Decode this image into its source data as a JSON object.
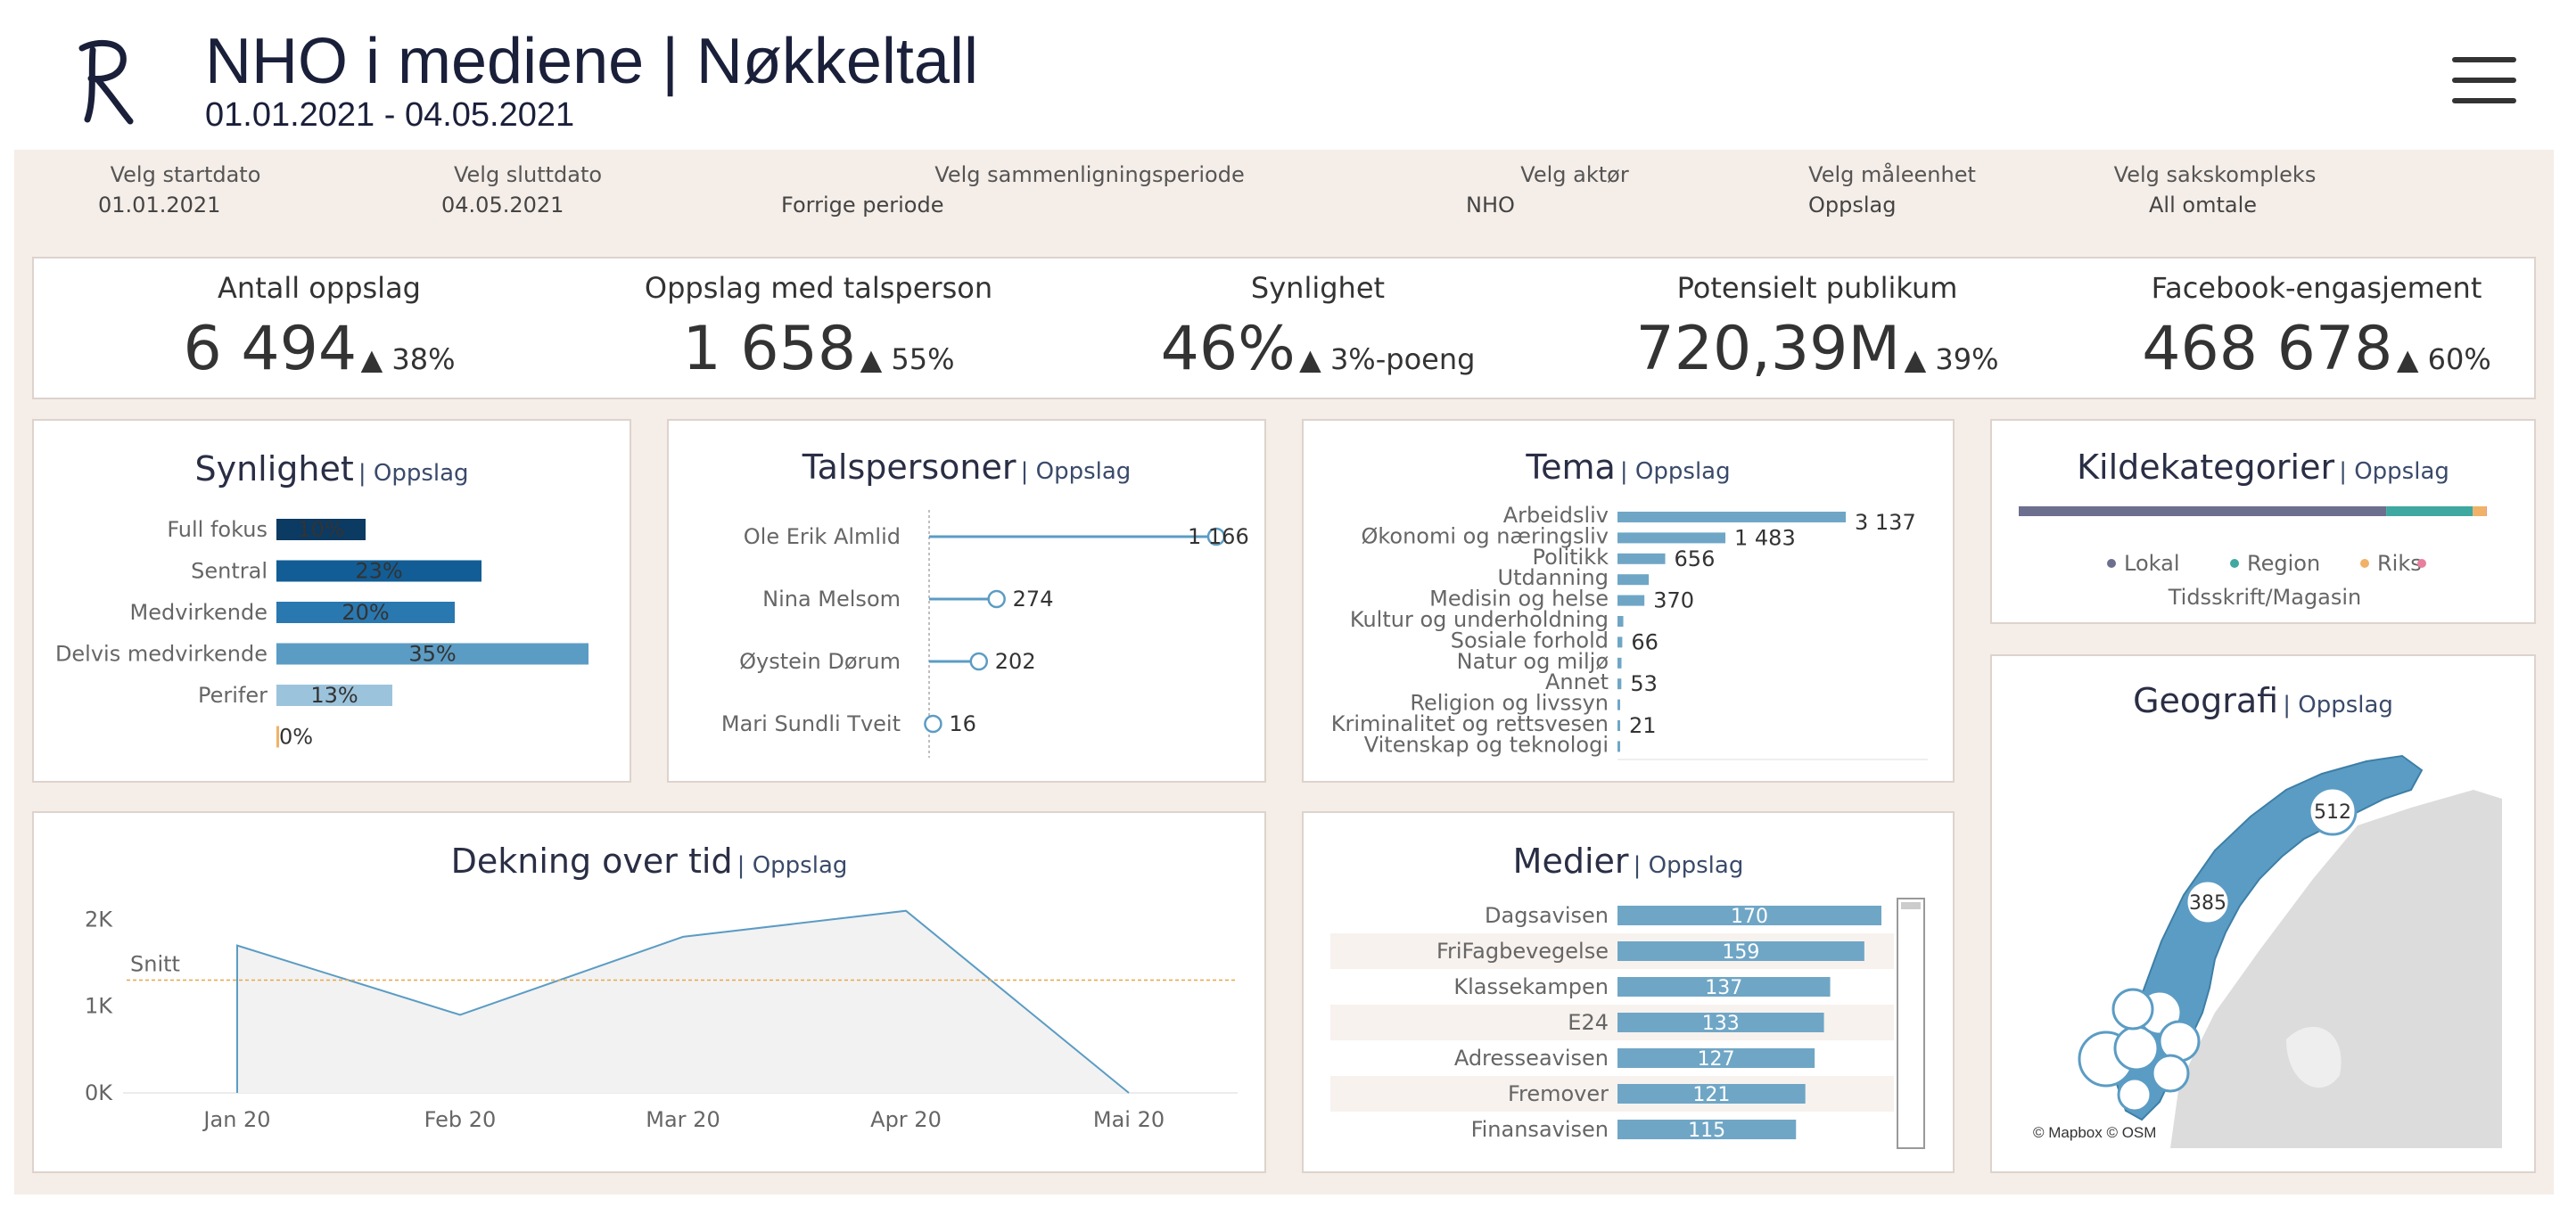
{
  "header": {
    "title": "NHO i mediene | Nøkkeltall",
    "subtitle": "01.01.2021 - 04.05.2021",
    "logo_text": "R"
  },
  "filters": [
    {
      "label": "Velg startdato",
      "value": "01.01.2021"
    },
    {
      "label": "Velg sluttdato",
      "value": "04.05.2021"
    },
    {
      "label": "Velg sammenligningsperiode",
      "value": "Forrige periode"
    },
    {
      "label": "Velg aktør",
      "value": "NHO"
    },
    {
      "label": "Velg måleenhet",
      "value": "Oppslag"
    },
    {
      "label": "Velg sakskompleks",
      "value": "All omtale"
    }
  ],
  "kpis": [
    {
      "label": "Antall oppslag",
      "value": "6 494",
      "change": "▲ 38%"
    },
    {
      "label": "Oppslag med talsperson",
      "value": "1 658",
      "change": "▲ 55%"
    },
    {
      "label": "Synlighet",
      "value": "46%",
      "change": "▲ 3%-poeng"
    },
    {
      "label": "Potensielt publikum",
      "value": "720,39M",
      "change": "▲ 39%"
    },
    {
      "label": "Facebook-engasjement",
      "value": "468 678",
      "change": "▲ 60%"
    }
  ],
  "colors": {
    "beige": "#f5ede7",
    "navy": "#0b3a63",
    "blue_dark": "#125d95",
    "blue_mid": "#2a78b0",
    "blue": "#5b9cc4",
    "blue_light": "#9cc3dc",
    "bar": "#6fa6c6",
    "lokal": "#6d6f8e",
    "region": "#3fa8a0",
    "riks": "#f0b268",
    "tidsskrift": "#e97f9f",
    "snitt": "#e8a64b"
  },
  "chart_data": [
    {
      "id": "synlighet",
      "type": "bar",
      "title": "Synlighet",
      "subtitle": "| Oppslag",
      "categories": [
        "Full fokus",
        "Sentral",
        "Medvirkende",
        "Delvis medvirkende",
        "Perifer",
        ""
      ],
      "values": [
        10,
        23,
        20,
        35,
        13,
        0
      ],
      "labels": [
        "10%",
        "23%",
        "20%",
        "35%",
        "13%",
        "0%"
      ],
      "max": 35
    },
    {
      "id": "talspersoner",
      "type": "scatter",
      "title": "Talspersoner",
      "subtitle": "| Oppslag",
      "categories": [
        "Ole Erik Almlid",
        "Nina Melsom",
        "Øystein Dørum",
        "Mari Sundli Tveit"
      ],
      "values": [
        1166,
        274,
        202,
        16
      ],
      "labels": [
        "1 166",
        "274",
        "202",
        "16"
      ],
      "max": 1166
    },
    {
      "id": "tema",
      "type": "bar",
      "title": "Tema",
      "subtitle": "| Oppslag",
      "categories": [
        "Arbeidsliv",
        "Økonomi og næringsliv",
        "Politikk",
        "Utdanning",
        "Medisin og helse",
        "Kultur og underholdning",
        "Sosiale forhold",
        "Natur og miljø",
        "Annet",
        "Religion og livssyn",
        "Kriminalitet og rettsvesen",
        "Vitenskap og teknologi"
      ],
      "values": [
        3137,
        1483,
        656,
        430,
        370,
        80,
        66,
        55,
        53,
        25,
        21,
        8
      ],
      "labels": [
        "3 137",
        "1 483",
        "656",
        "",
        "370",
        "",
        "66",
        "",
        "53",
        "",
        "21",
        ""
      ],
      "max": 3137
    },
    {
      "id": "kildekategorier",
      "type": "bar",
      "title": "Kildekategorier",
      "subtitle": "| Oppslag",
      "categories": [
        "Lokal",
        "Region",
        "Riks",
        "Tidsskrift/Magasin"
      ],
      "values": [
        78.5,
        18.5,
        2.9,
        0.1
      ]
    },
    {
      "id": "dekning",
      "type": "area",
      "title": "Dekning over tid",
      "subtitle": "| Oppslag",
      "categories": [
        "Jan 20",
        "Feb 20",
        "Mar 20",
        "Apr 20",
        "Mai 20"
      ],
      "values": [
        1700,
        900,
        1800,
        2100,
        0
      ],
      "yticks": [
        "0K",
        "1K",
        "2K"
      ],
      "ylim": [
        0,
        2200
      ],
      "snitt": 1300,
      "snitt_label": "Snitt"
    },
    {
      "id": "medier",
      "type": "bar",
      "title": "Medier",
      "subtitle": "| Oppslag",
      "categories": [
        "Dagsavisen",
        "FriFagbevegelse",
        "Klassekampen",
        "E24",
        "Adresseavisen",
        "Fremover",
        "Finansavisen"
      ],
      "values": [
        170,
        159,
        137,
        133,
        127,
        121,
        115
      ],
      "labels": [
        "170",
        "159",
        "137",
        "133",
        "127",
        "121",
        "115"
      ],
      "max": 170
    },
    {
      "id": "geografi",
      "type": "scatter",
      "title": "Geografi",
      "subtitle": "| Oppslag",
      "bubbles": [
        {
          "label": "512",
          "value": 512
        },
        {
          "label": "385",
          "value": 385
        }
      ],
      "attribution": "© Mapbox © OSM"
    }
  ]
}
